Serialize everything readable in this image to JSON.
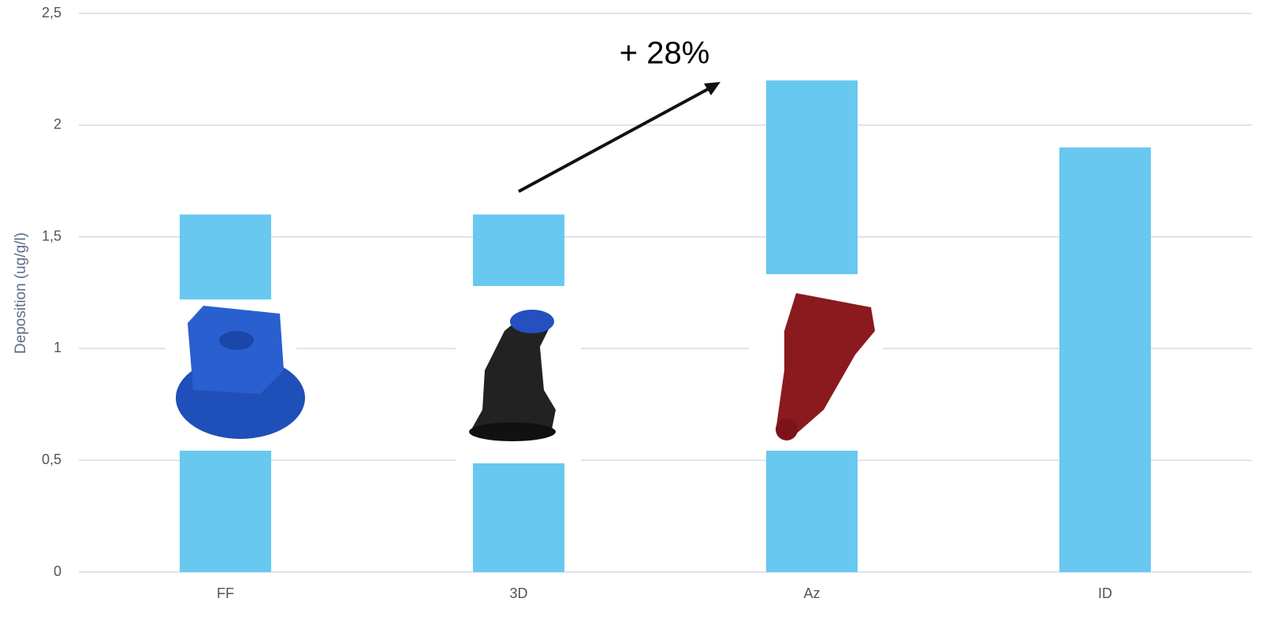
{
  "chart_data": {
    "type": "bar",
    "y_label": "Deposition (ug/g/l)",
    "annotation": "+ 28%",
    "categories": [
      "FF",
      "3D",
      "Az",
      "ID"
    ],
    "values": [
      1.6,
      1.6,
      2.2,
      1.9
    ],
    "color": "#68c8f0",
    "ylim": [
      0,
      2.5
    ],
    "yticks": [
      0,
      {
        "value": 0.5,
        "label": "0,5"
      },
      1,
      {
        "value": 1.5,
        "label": "1,5"
      },
      2,
      {
        "value": 2.5,
        "label": "2,5"
      }
    ],
    "grid": true
  }
}
